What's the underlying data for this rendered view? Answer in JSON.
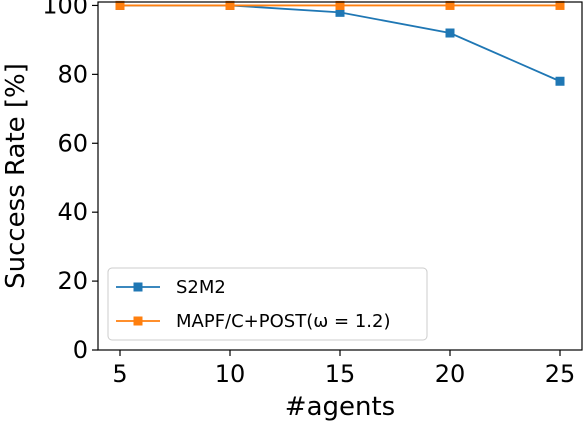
{
  "chart_data": {
    "type": "line",
    "x": [
      5,
      10,
      15,
      20,
      25
    ],
    "xlabel": "#agents",
    "ylabel": "Success Rate [%]",
    "xlim": [
      4,
      26
    ],
    "ylim": [
      0,
      101
    ],
    "xticks": [
      "5",
      "10",
      "15",
      "20",
      "25"
    ],
    "yticks": [
      "0",
      "20",
      "40",
      "60",
      "80",
      "100"
    ],
    "grid": false,
    "legend_position": "lower-left",
    "series": [
      {
        "name": "S2M2",
        "color": "#1f77b4",
        "marker": "square",
        "values": [
          100,
          100,
          98,
          92,
          78
        ]
      },
      {
        "name": "MAPF/C+POST(ω = 1.2)",
        "color": "#ff7f0e",
        "marker": "square",
        "values": [
          100,
          100,
          100,
          100,
          100
        ]
      }
    ]
  }
}
